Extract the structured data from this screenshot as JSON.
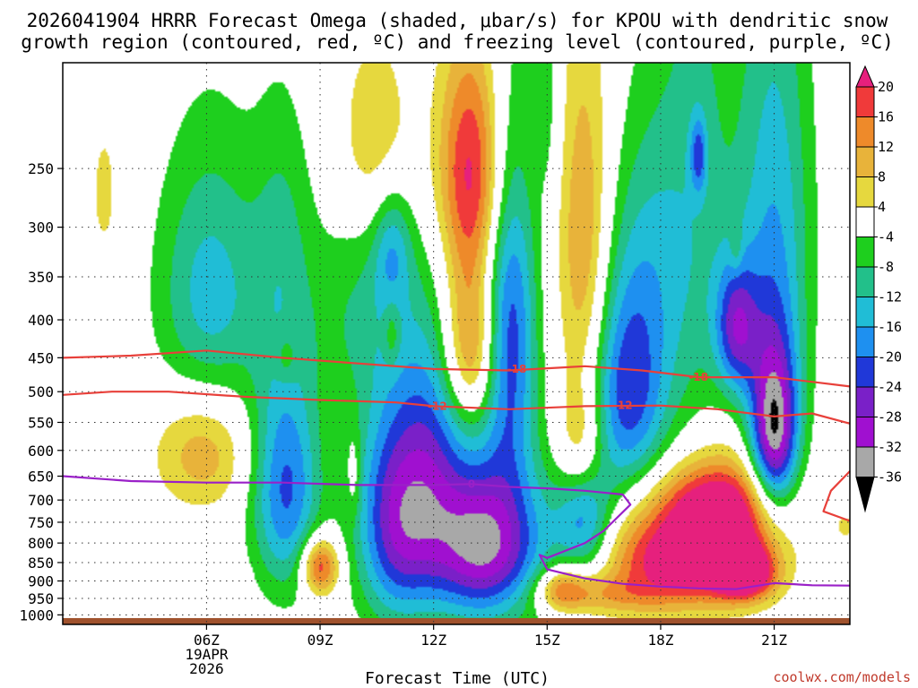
{
  "title": {
    "line1": "2026041904 HRRR Forecast Omega (shaded, μbar/s) for KPOU with dendritic snow",
    "line2": "growth region (contoured, red, ºC) and freezing level (contoured, purple, ºC)"
  },
  "credit": "coolwx.com/models",
  "chart_data": {
    "type": "time-height cross-section (filled contour)",
    "xlabel": "Forecast Time (UTC)",
    "ylabel": "",
    "x_range_hours": [
      2.2,
      23.0
    ],
    "y_range_hpa": [
      1030,
      180
    ],
    "y_scale": "log-pressure (inverted)",
    "grid": true,
    "x_ticks": [
      {
        "hour": 6,
        "label": "06Z",
        "sub1": "19APR",
        "sub2": "2026"
      },
      {
        "hour": 9,
        "label": "09Z"
      },
      {
        "hour": 12,
        "label": "12Z"
      },
      {
        "hour": 15,
        "label": "15Z"
      },
      {
        "hour": 18,
        "label": "18Z"
      },
      {
        "hour": 21,
        "label": "21Z"
      }
    ],
    "y_ticks": [
      250,
      300,
      350,
      400,
      450,
      500,
      550,
      600,
      650,
      700,
      750,
      800,
      850,
      900,
      950,
      1000
    ],
    "colorbar": {
      "levels": [
        20,
        16,
        12,
        8,
        4,
        -4,
        -8,
        -12,
        -16,
        -20,
        -24,
        -28,
        -32,
        -36
      ],
      "bins": [
        {
          "low": 20,
          "high": 99,
          "color": "#e6207d"
        },
        {
          "low": 16,
          "high": 20,
          "color": "#f03a3a"
        },
        {
          "low": 12,
          "high": 16,
          "color": "#ee8a2a"
        },
        {
          "low": 8,
          "high": 12,
          "color": "#e8b33a"
        },
        {
          "low": 4,
          "high": 8,
          "color": "#e6d83e"
        },
        {
          "low": -4,
          "high": 4,
          "color": "#ffffff"
        },
        {
          "low": -8,
          "high": -4,
          "color": "#1ecf1e"
        },
        {
          "low": -12,
          "high": -8,
          "color": "#22c08a"
        },
        {
          "low": -16,
          "high": -12,
          "color": "#20bdd6"
        },
        {
          "low": -20,
          "high": -16,
          "color": "#1e90f0"
        },
        {
          "low": -24,
          "high": -20,
          "color": "#2038d8"
        },
        {
          "low": -28,
          "high": -24,
          "color": "#7a20c8"
        },
        {
          "low": -32,
          "high": -28,
          "color": "#a010d0"
        },
        {
          "low": -36,
          "high": -32,
          "color": "#a8a8a8"
        },
        {
          "low": -99,
          "high": -36,
          "color": "#000000"
        }
      ]
    },
    "terrain": {
      "surface_hpa": 1010,
      "color": "#a0522d"
    },
    "omega_features": [
      {
        "hour": 3.3,
        "hpa": 270,
        "dh": 0.25,
        "dp": 40,
        "peak": 6
      },
      {
        "hour": 5.9,
        "hpa": 600,
        "dh": 0.9,
        "dp": 80,
        "peak": 11
      },
      {
        "hour": 6.1,
        "hpa": 370,
        "dh": 1.0,
        "dp": 110,
        "peak": -14
      },
      {
        "hour": 8.0,
        "hpa": 300,
        "dh": 0.55,
        "dp": 90,
        "peak": -6
      },
      {
        "hour": 8.1,
        "hpa": 450,
        "dh": 0.2,
        "dp": 25,
        "peak": 6
      },
      {
        "hour": 8.1,
        "hpa": 670,
        "dh": 0.65,
        "dp": 170,
        "peak": -21
      },
      {
        "hour": 9.0,
        "hpa": 860,
        "dh": 0.35,
        "dp": 55,
        "peak": 21
      },
      {
        "hour": 7.0,
        "hpa": 880,
        "dh": 0.1,
        "dp": 10,
        "peak": 6
      },
      {
        "hour": 10.0,
        "hpa": 390,
        "dh": 1.0,
        "dp": 90,
        "peak": -7
      },
      {
        "hour": 10.5,
        "hpa": 230,
        "dh": 0.7,
        "dp": 50,
        "peak": 9
      },
      {
        "hour": 11.0,
        "hpa": 730,
        "dh": 0.75,
        "dp": 190,
        "peak": -25
      },
      {
        "hour": 10.9,
        "hpa": 320,
        "dh": 0.35,
        "dp": 45,
        "peak": -11
      },
      {
        "hour": 10.9,
        "hpa": 420,
        "dh": 0.15,
        "dp": 30,
        "peak": 7
      },
      {
        "hour": 9.9,
        "hpa": 650,
        "dh": 0.12,
        "dp": 60,
        "peak": 6
      },
      {
        "hour": 13.0,
        "hpa": 250,
        "dh": 0.65,
        "dp": 65,
        "peak": 21
      },
      {
        "hour": 13.0,
        "hpa": 430,
        "dh": 0.55,
        "dp": 80,
        "peak": 17
      },
      {
        "hour": 13.3,
        "hpa": 800,
        "dh": 1.15,
        "dp": 145,
        "peak": -34
      },
      {
        "hour": 12.0,
        "hpa": 560,
        "dh": 0.6,
        "dp": 160,
        "peak": -12
      },
      {
        "hour": 14.0,
        "hpa": 410,
        "dh": 0.5,
        "dp": 150,
        "peak": -23
      },
      {
        "hour": 15.0,
        "hpa": 200,
        "dh": 0.25,
        "dp": 50,
        "peak": -6
      },
      {
        "hour": 16.0,
        "hpa": 340,
        "dh": 0.5,
        "dp": 140,
        "peak": 14
      },
      {
        "hour": 15.9,
        "hpa": 580,
        "dh": 0.45,
        "dp": 70,
        "peak": 10
      },
      {
        "hour": 16.0,
        "hpa": 760,
        "dh": 0.55,
        "dp": 90,
        "peak": -17
      },
      {
        "hour": 15.4,
        "hpa": 920,
        "dh": 0.45,
        "dp": 45,
        "peak": 14
      },
      {
        "hour": 16.4,
        "hpa": 940,
        "dh": 1.2,
        "dp": 40,
        "peak": 8
      },
      {
        "hour": 17.1,
        "hpa": 500,
        "dh": 0.8,
        "dp": 130,
        "peak": -23
      },
      {
        "hour": 17.8,
        "hpa": 310,
        "dh": 0.7,
        "dp": 110,
        "peak": -7
      },
      {
        "hour": 19.0,
        "hpa": 280,
        "dh": 0.7,
        "dp": 190,
        "peak": -9
      },
      {
        "hour": 19.0,
        "hpa": 240,
        "dh": 0.15,
        "dp": 20,
        "peak": -13
      },
      {
        "hour": 18.3,
        "hpa": 840,
        "dh": 1.4,
        "dp": 95,
        "peak": 22
      },
      {
        "hour": 19.7,
        "hpa": 760,
        "dh": 1.0,
        "dp": 100,
        "peak": 20
      },
      {
        "hour": 20.2,
        "hpa": 880,
        "dh": 0.55,
        "dp": 50,
        "peak": 25
      },
      {
        "hour": 19.3,
        "hpa": 690,
        "dh": 1.3,
        "dp": 60,
        "peak": 8
      },
      {
        "hour": 20.0,
        "hpa": 320,
        "dh": 0.12,
        "dp": 20,
        "peak": 6
      },
      {
        "hour": 20.0,
        "hpa": 410,
        "dh": 0.4,
        "dp": 60,
        "peak": -21
      },
      {
        "hour": 21.0,
        "hpa": 310,
        "dh": 0.7,
        "dp": 170,
        "peak": -15
      },
      {
        "hour": 21.0,
        "hpa": 570,
        "dh": 0.45,
        "dp": 110,
        "peak": -33
      },
      {
        "hour": 22.9,
        "hpa": 760,
        "dh": 0.2,
        "dp": 20,
        "peak": 6
      }
    ],
    "contours": [
      {
        "name": "-18",
        "color": "#e8403a",
        "label": "-18",
        "points": [
          [
            2.2,
            450
          ],
          [
            4.0,
            447
          ],
          [
            6.0,
            440
          ],
          [
            8.0,
            450
          ],
          [
            10.0,
            458
          ],
          [
            12.0,
            466
          ],
          [
            14.0,
            468
          ],
          [
            16.0,
            462
          ],
          [
            17.5,
            468
          ],
          [
            19.0,
            478
          ],
          [
            21.0,
            478
          ],
          [
            23.0,
            492
          ]
        ],
        "labels": [
          {
            "hour": 14.2,
            "hpa": 466
          },
          {
            "hour": 19.0,
            "hpa": 478
          }
        ]
      },
      {
        "name": "-12",
        "color": "#e8403a",
        "label": "-12",
        "points": [
          [
            2.2,
            505
          ],
          [
            3.5,
            500
          ],
          [
            5.0,
            500
          ],
          [
            7.0,
            508
          ],
          [
            9.0,
            513
          ],
          [
            11.0,
            517
          ],
          [
            12.0,
            523
          ],
          [
            14.0,
            528
          ],
          [
            16.0,
            523
          ],
          [
            18.0,
            522
          ],
          [
            19.5,
            528
          ],
          [
            21.0,
            540
          ],
          [
            22.0,
            535
          ],
          [
            23.0,
            552
          ]
        ],
        "labels": [
          {
            "hour": 12.1,
            "hpa": 523
          },
          {
            "hour": 17.0,
            "hpa": 522
          }
        ]
      },
      {
        "name": "-12b",
        "color": "#e8403a",
        "label": "",
        "points": [
          [
            23.0,
            640
          ],
          [
            22.5,
            680
          ],
          [
            22.3,
            725
          ],
          [
            23.0,
            747
          ]
        ],
        "labels": []
      },
      {
        "name": "0",
        "color": "#9a20c8",
        "label": "0",
        "points": [
          [
            2.2,
            650
          ],
          [
            4.0,
            660
          ],
          [
            6.0,
            663
          ],
          [
            8.0,
            663
          ],
          [
            10.0,
            668
          ],
          [
            12.0,
            668
          ],
          [
            13.0,
            666
          ],
          [
            14.0,
            672
          ],
          [
            15.0,
            675
          ],
          [
            16.0,
            680
          ],
          [
            17.0,
            688
          ],
          [
            17.2,
            710
          ],
          [
            16.5,
            770
          ],
          [
            16.0,
            800
          ],
          [
            15.0,
            838
          ],
          [
            14.8,
            830
          ],
          [
            15.0,
            868
          ],
          [
            16.0,
            893
          ],
          [
            17.0,
            908
          ],
          [
            18.0,
            916
          ],
          [
            19.0,
            921
          ],
          [
            20.0,
            923
          ],
          [
            21.0,
            906
          ],
          [
            22.0,
            912
          ],
          [
            23.0,
            913
          ]
        ],
        "labels": [
          {
            "hour": 13.0,
            "hpa": 666
          }
        ]
      }
    ]
  }
}
